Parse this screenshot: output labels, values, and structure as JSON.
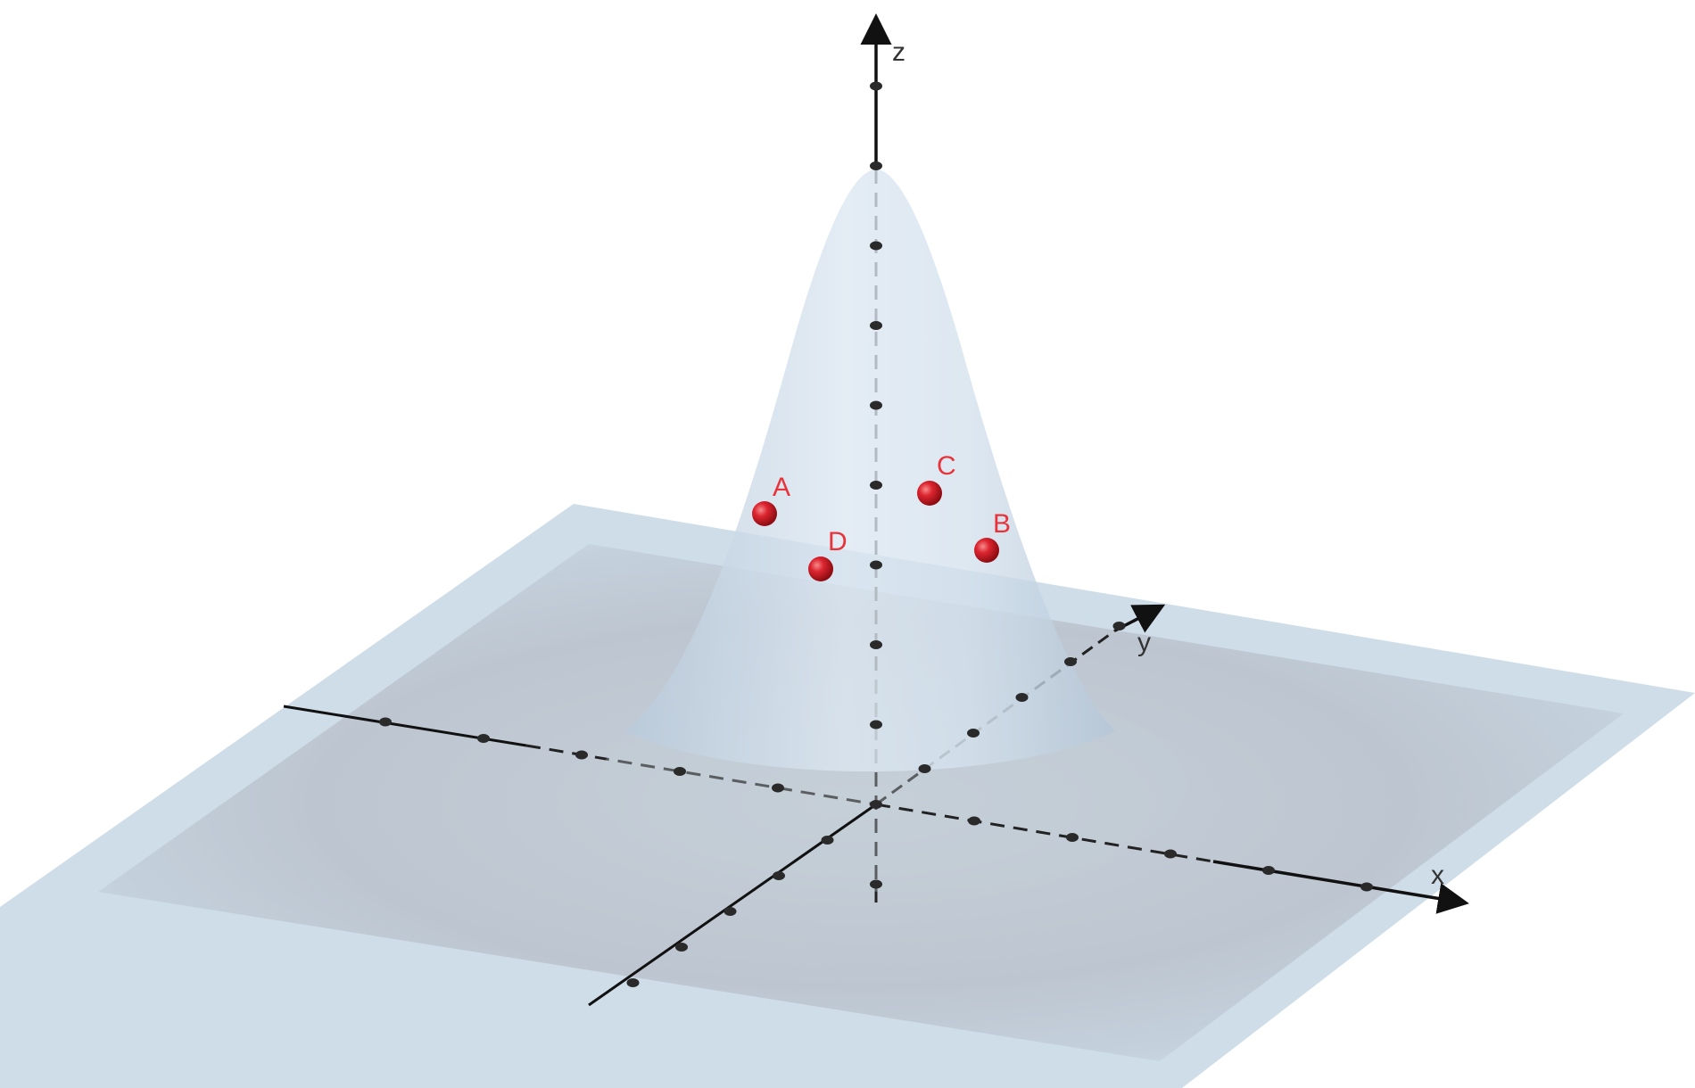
{
  "axes": {
    "x_label": "x",
    "y_label": "y",
    "z_label": "z"
  },
  "points": [
    {
      "id": "A",
      "label": "A"
    },
    {
      "id": "B",
      "label": "B"
    },
    {
      "id": "C",
      "label": "C"
    },
    {
      "id": "D",
      "label": "D"
    }
  ],
  "colors": {
    "surface": "#c9d9e8",
    "surface_shadow": "#a9b0ba",
    "point": "#d8202a",
    "point_label": "#e8333b",
    "axis": "#111111"
  }
}
